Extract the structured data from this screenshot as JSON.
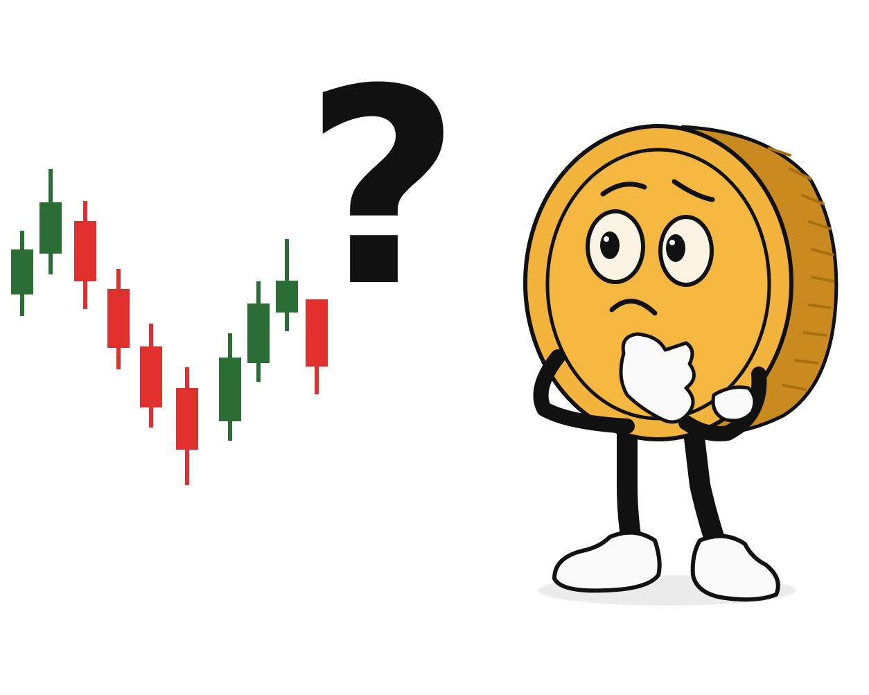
{
  "scene": {
    "background": "#ffffff",
    "question_mark": "?",
    "candlestick_colors": {
      "bullish": "#2a6e36",
      "bearish": "#e0302e"
    },
    "coin_colors": {
      "face": "#f2b43c",
      "inner_face": "#f4b840",
      "rim": "#c98a1f",
      "edge_stripes": "#a86e12",
      "outline": "#111111"
    },
    "character": {
      "name": "worried-coin-mascot",
      "expression": "worried",
      "pose": "thinking-hand-on-chin"
    }
  },
  "candles": [
    {
      "dir": "up"
    },
    {
      "dir": "up"
    },
    {
      "dir": "down"
    },
    {
      "dir": "down"
    },
    {
      "dir": "down"
    },
    {
      "dir": "down"
    },
    {
      "dir": "up"
    },
    {
      "dir": "up"
    },
    {
      "dir": "up"
    },
    {
      "dir": "down"
    }
  ]
}
